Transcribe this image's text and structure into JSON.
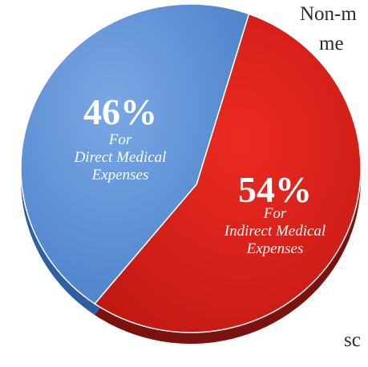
{
  "page_text": {
    "line1": "Non-m",
    "line2": "me",
    "line3": "sc"
  },
  "colors": {
    "direct_top": "#5b8fd6",
    "direct_side": "#2f5fa3",
    "indirect_top": "#d9201a",
    "indirect_side": "#7a1210"
  },
  "chart_data": {
    "type": "pie",
    "slices": [
      {
        "label_pct": "46%",
        "label_line1": "For",
        "label_line2": "Direct Medical",
        "label_line3": "Expenses",
        "value": 46
      },
      {
        "label_pct": "54%",
        "label_line1": "For",
        "label_line2": "Indirect Medical",
        "label_line3": "Expenses",
        "value": 54
      }
    ]
  }
}
